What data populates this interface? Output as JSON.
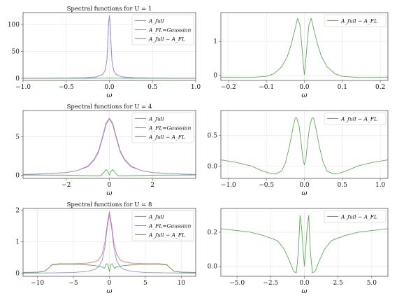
{
  "colors": {
    "full": "#e8797a",
    "gaussian": "#8f8ff0",
    "diff": "#5fae57"
  },
  "legend": {
    "full": "A_full",
    "gaussian": "A_FL=Gaussian",
    "diff": "A_full − A_FL"
  },
  "chart_data": [
    {
      "type": "line",
      "title": "Spectral functions for U = 1",
      "xlabel": "ω",
      "xlim": [
        -1.0,
        1.0
      ],
      "ylim": [
        -4,
        122
      ],
      "xticks": [
        -1.0,
        -0.5,
        0.0,
        0.5,
        1.0
      ],
      "xtick_labels": [
        "−1.0",
        "−0.5",
        "0.0",
        "0.5",
        "1.0"
      ],
      "yticks": [
        0,
        50,
        100
      ],
      "ytick_labels": [
        "0",
        "50",
        "100"
      ],
      "legend_position": "top-right",
      "series": [
        {
          "key": "full",
          "x": [
            -1.0,
            -0.6,
            -0.3,
            -0.15,
            -0.08,
            -0.05,
            -0.03,
            -0.02,
            -0.01,
            0.0,
            0.01,
            0.02,
            0.03,
            0.05,
            0.08,
            0.15,
            0.3,
            0.6,
            1.0
          ],
          "y": [
            0.2,
            0.4,
            0.9,
            2.5,
            7,
            14,
            32,
            60,
            100,
            116,
            100,
            60,
            32,
            14,
            7,
            2.5,
            0.9,
            0.4,
            0.2
          ]
        },
        {
          "key": "gaussian",
          "x": [
            -1.0,
            -0.6,
            -0.3,
            -0.15,
            -0.08,
            -0.05,
            -0.03,
            -0.02,
            -0.01,
            0.0,
            0.01,
            0.02,
            0.03,
            0.05,
            0.08,
            0.15,
            0.3,
            0.6,
            1.0
          ],
          "y": [
            0.2,
            0.4,
            0.9,
            2.5,
            7,
            14,
            32,
            60,
            100,
            116,
            100,
            60,
            32,
            14,
            7,
            2.5,
            0.9,
            0.4,
            0.2
          ]
        },
        {
          "key": "diff",
          "x": [
            -1.0,
            -0.2,
            -0.05,
            -0.02,
            0.0,
            0.02,
            0.05,
            0.2,
            1.0
          ],
          "y": [
            0,
            0,
            0.3,
            0.6,
            0,
            0.6,
            0.3,
            0,
            0
          ]
        }
      ]
    },
    {
      "type": "line",
      "title": "",
      "xlabel": "ω",
      "xlim": [
        -0.22,
        0.22
      ],
      "ylim": [
        -0.15,
        1.85
      ],
      "xticks": [
        -0.2,
        -0.1,
        0.0,
        0.1,
        0.2
      ],
      "xtick_labels": [
        "−0.2",
        "−0.1",
        "0.0",
        "0.1",
        "0.2"
      ],
      "yticks": [
        0,
        1
      ],
      "ytick_labels": [
        "0",
        "1"
      ],
      "legend_position": "top-right",
      "series": [
        {
          "key": "diff",
          "x": [
            -0.22,
            -0.18,
            -0.14,
            -0.1,
            -0.08,
            -0.06,
            -0.045,
            -0.035,
            -0.025,
            -0.018,
            -0.012,
            -0.007,
            -0.003,
            0.0,
            0.003,
            0.007,
            0.012,
            0.018,
            0.025,
            0.035,
            0.045,
            0.06,
            0.08,
            0.1,
            0.14,
            0.18,
            0.22
          ],
          "y": [
            -0.05,
            -0.06,
            -0.06,
            -0.03,
            0.05,
            0.25,
            0.55,
            0.9,
            1.35,
            1.68,
            1.5,
            0.9,
            0.35,
            0.02,
            0.35,
            0.9,
            1.5,
            1.68,
            1.35,
            0.9,
            0.55,
            0.25,
            0.05,
            -0.03,
            -0.06,
            -0.06,
            -0.05
          ]
        }
      ]
    },
    {
      "type": "line",
      "title": "Spectral functions for U = 4",
      "xlabel": "ω",
      "xlim": [
        -4.0,
        4.0
      ],
      "ylim": [
        -0.4,
        8.4
      ],
      "xticks": [
        -2,
        0,
        2
      ],
      "xtick_labels": [
        "−2",
        "0",
        "2"
      ],
      "yticks": [
        0,
        5
      ],
      "ytick_labels": [
        "0",
        "5"
      ],
      "legend_position": "top-right",
      "series": [
        {
          "key": "full",
          "x": [
            -4.0,
            -3.0,
            -2.0,
            -1.5,
            -1.0,
            -0.7,
            -0.5,
            -0.3,
            -0.15,
            0.0,
            0.15,
            0.3,
            0.5,
            0.7,
            1.0,
            1.5,
            2.0,
            3.0,
            4.0
          ],
          "y": [
            0.1,
            0.2,
            0.35,
            0.6,
            1.2,
            2.1,
            3.2,
            5.2,
            6.8,
            7.4,
            6.8,
            5.2,
            3.2,
            2.1,
            1.2,
            0.6,
            0.35,
            0.2,
            0.1
          ]
        },
        {
          "key": "gaussian",
          "x": [
            -4.0,
            -3.0,
            -2.0,
            -1.5,
            -1.0,
            -0.7,
            -0.5,
            -0.3,
            -0.15,
            0.0,
            0.15,
            0.3,
            0.5,
            0.7,
            1.0,
            1.5,
            2.0,
            3.0,
            4.0
          ],
          "y": [
            0.1,
            0.2,
            0.35,
            0.6,
            1.1,
            2.0,
            3.0,
            5.0,
            6.6,
            7.3,
            6.6,
            5.0,
            3.0,
            2.0,
            1.1,
            0.6,
            0.35,
            0.2,
            0.1
          ]
        },
        {
          "key": "diff",
          "x": [
            -4.0,
            -2.0,
            -1.0,
            -0.6,
            -0.4,
            -0.25,
            -0.15,
            -0.07,
            0.0,
            0.07,
            0.15,
            0.25,
            0.4,
            0.6,
            1.0,
            2.0,
            4.0
          ],
          "y": [
            0.05,
            0.02,
            -0.05,
            -0.1,
            -0.05,
            0.4,
            0.75,
            0.5,
            0.05,
            0.5,
            0.75,
            0.4,
            -0.05,
            -0.1,
            -0.05,
            0.02,
            0.05
          ]
        }
      ]
    },
    {
      "type": "line",
      "title": "",
      "xlabel": "ω",
      "xlim": [
        -1.1,
        1.1
      ],
      "ylim": [
        -0.2,
        0.9
      ],
      "xticks": [
        -1.0,
        -0.5,
        0.0,
        0.5,
        1.0
      ],
      "xtick_labels": [
        "−1.0",
        "−0.5",
        "0.0",
        "0.5",
        "1.0"
      ],
      "yticks": [
        0,
        0.5
      ],
      "ytick_labels": [
        "0.0",
        "0.5"
      ],
      "legend_position": "top-right",
      "series": [
        {
          "key": "diff",
          "x": [
            -1.1,
            -0.9,
            -0.7,
            -0.55,
            -0.45,
            -0.38,
            -0.3,
            -0.25,
            -0.2,
            -0.15,
            -0.12,
            -0.1,
            -0.07,
            -0.04,
            -0.02,
            0.0,
            0.02,
            0.04,
            0.07,
            0.1,
            0.12,
            0.15,
            0.2,
            0.25,
            0.3,
            0.38,
            0.45,
            0.55,
            0.7,
            0.9,
            1.1
          ],
          "y": [
            0.1,
            0.06,
            0.0,
            -0.08,
            -0.12,
            -0.13,
            -0.08,
            0.05,
            0.3,
            0.62,
            0.78,
            0.78,
            0.65,
            0.35,
            0.12,
            0.02,
            0.12,
            0.35,
            0.65,
            0.78,
            0.78,
            0.62,
            0.3,
            0.05,
            -0.08,
            -0.13,
            -0.12,
            -0.08,
            0.0,
            0.06,
            0.1
          ]
        }
      ]
    },
    {
      "type": "line",
      "title": "Spectral functions for U = 8",
      "xlabel": "ω",
      "xlim": [
        -12.0,
        12.0
      ],
      "ylim": [
        -0.1,
        2.05
      ],
      "xticks": [
        -10,
        -5,
        0,
        5,
        10
      ],
      "xtick_labels": [
        "−10",
        "−5",
        "0",
        "5",
        "10"
      ],
      "yticks": [
        0,
        1,
        2
      ],
      "ytick_labels": [
        "0",
        "1",
        "2"
      ],
      "legend_position": "top-right",
      "series": [
        {
          "key": "full",
          "x": [
            -12,
            -10,
            -9,
            -8.5,
            -8,
            -7,
            -5,
            -3,
            -2,
            -1.5,
            -1,
            -0.6,
            -0.3,
            0,
            0.3,
            0.6,
            1,
            1.5,
            2,
            3,
            5,
            7,
            8,
            8.5,
            9,
            10,
            12
          ],
          "y": [
            0.02,
            0.03,
            0.06,
            0.15,
            0.27,
            0.3,
            0.3,
            0.32,
            0.36,
            0.42,
            0.6,
            1.0,
            1.55,
            1.95,
            1.55,
            1.0,
            0.6,
            0.42,
            0.36,
            0.32,
            0.3,
            0.3,
            0.27,
            0.15,
            0.06,
            0.03,
            0.02
          ]
        },
        {
          "key": "gaussian",
          "x": [
            -12,
            -8,
            -5,
            -3,
            -2,
            -1.5,
            -1,
            -0.6,
            -0.3,
            0,
            0.3,
            0.6,
            1,
            1.5,
            2,
            3,
            5,
            8,
            12
          ],
          "y": [
            0.0,
            0.01,
            0.02,
            0.06,
            0.12,
            0.2,
            0.4,
            0.85,
            1.45,
            1.85,
            1.45,
            0.85,
            0.4,
            0.2,
            0.12,
            0.06,
            0.02,
            0.01,
            0.0
          ]
        },
        {
          "key": "diff",
          "x": [
            -12,
            -10,
            -9,
            -8.5,
            -8,
            -7,
            -5,
            -3,
            -2,
            -1.5,
            -1,
            -0.7,
            -0.4,
            -0.2,
            0,
            0.2,
            0.4,
            0.7,
            1,
            1.5,
            2,
            3,
            5,
            7,
            8,
            8.5,
            9,
            10,
            12
          ],
          "y": [
            0.02,
            0.03,
            0.06,
            0.15,
            0.26,
            0.28,
            0.28,
            0.26,
            0.24,
            0.22,
            0.2,
            0.15,
            0.3,
            0.28,
            0.05,
            0.28,
            0.3,
            0.15,
            0.2,
            0.22,
            0.24,
            0.26,
            0.28,
            0.28,
            0.26,
            0.15,
            0.06,
            0.03,
            0.02
          ]
        }
      ]
    },
    {
      "type": "line",
      "title": "",
      "xlabel": "ω",
      "xlim": [
        -6.2,
        6.2
      ],
      "ylim": [
        -0.06,
        0.34
      ],
      "xticks": [
        -5.0,
        -2.5,
        0.0,
        2.5,
        5.0
      ],
      "xtick_labels": [
        "−5.0",
        "−2.5",
        "0.0",
        "2.5",
        "5.0"
      ],
      "yticks": [
        0.0,
        0.2
      ],
      "ytick_labels": [
        "0.0",
        "0.2"
      ],
      "legend_position": "top-right",
      "series": [
        {
          "key": "diff",
          "x": [
            -6.2,
            -5,
            -4,
            -3,
            -2,
            -1.5,
            -1.1,
            -0.8,
            -0.6,
            -0.45,
            -0.32,
            -0.2,
            -0.1,
            0,
            0.1,
            0.2,
            0.32,
            0.45,
            0.6,
            0.8,
            1.1,
            1.5,
            2,
            3,
            4,
            5,
            6.2
          ],
          "y": [
            0.22,
            0.21,
            0.2,
            0.18,
            0.15,
            0.1,
            0.03,
            -0.03,
            -0.04,
            0.08,
            0.3,
            0.22,
            0.1,
            0.0,
            0.1,
            0.22,
            0.3,
            0.08,
            -0.04,
            -0.03,
            0.03,
            0.1,
            0.15,
            0.18,
            0.2,
            0.21,
            0.22
          ]
        }
      ]
    }
  ]
}
